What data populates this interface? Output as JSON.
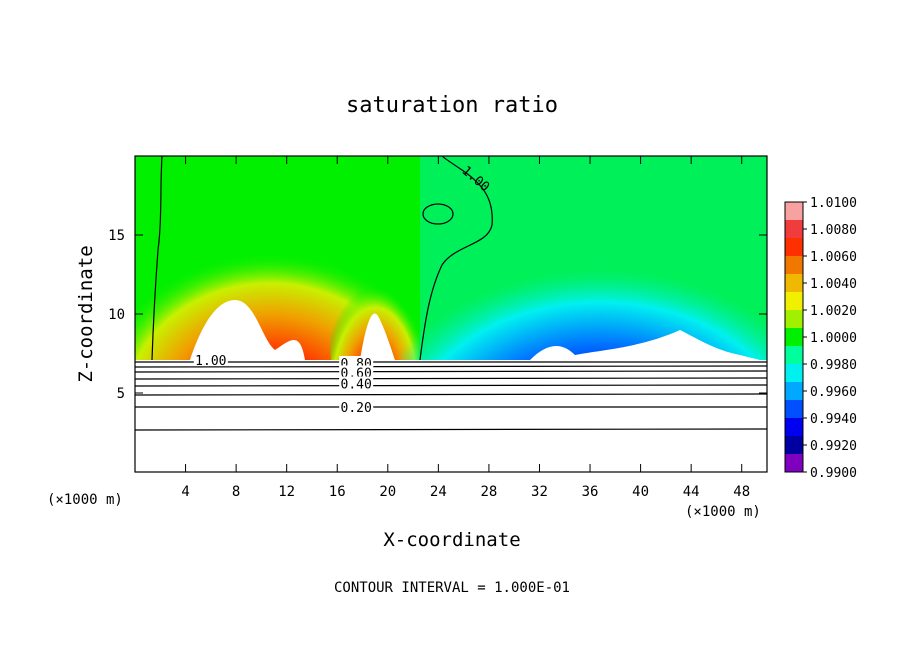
{
  "chart_data": {
    "type": "heatmap",
    "title": "saturation ratio",
    "xlabel": "X-coordinate",
    "ylabel": "Z-coordinate",
    "x_unit_left": "(×1000 m)",
    "x_unit_right": "(×1000 m)",
    "xlim": [
      0,
      50
    ],
    "ylim": [
      0,
      20
    ],
    "x_ticks": [
      4,
      8,
      12,
      16,
      20,
      24,
      28,
      32,
      36,
      40,
      44,
      48
    ],
    "y_ticks": [
      5,
      10,
      15
    ],
    "colorbar": {
      "levels": [
        1.01,
        1.008,
        1.006,
        1.004,
        1.002,
        1.0,
        0.998,
        0.996,
        0.994,
        0.992,
        0.99
      ],
      "labels": [
        "1.0100",
        "1.0080",
        "1.0060",
        "1.0040",
        "1.0020",
        "1.0000",
        "0.9980",
        "0.9960",
        "0.9940",
        "0.9920",
        "0.9900"
      ],
      "colors": [
        "#f7a1a1",
        "#f03c3c",
        "#ff3000",
        "#f07800",
        "#f0b800",
        "#f0f000",
        "#a0f000",
        "#00f000",
        "#00ff9c",
        "#00f0f0",
        "#00a8ff",
        "#0050ff",
        "#0000f0",
        "#0000a0",
        "#8000c0"
      ]
    },
    "contour_labels": [
      {
        "text": "1.00",
        "x": 27,
        "z": 18.6
      },
      {
        "text": "1.00",
        "x": 6,
        "z": 7.1
      },
      {
        "text": "0.80",
        "x": 17.5,
        "z": 6.9
      },
      {
        "text": "0.60",
        "x": 17.5,
        "z": 6.3
      },
      {
        "text": "0.40",
        "x": 17.5,
        "z": 5.6
      },
      {
        "text": "0.20",
        "x": 17.5,
        "z": 4.1
      }
    ],
    "contour_interval_note": "CONTOUR INTERVAL = 1.000E-01"
  }
}
